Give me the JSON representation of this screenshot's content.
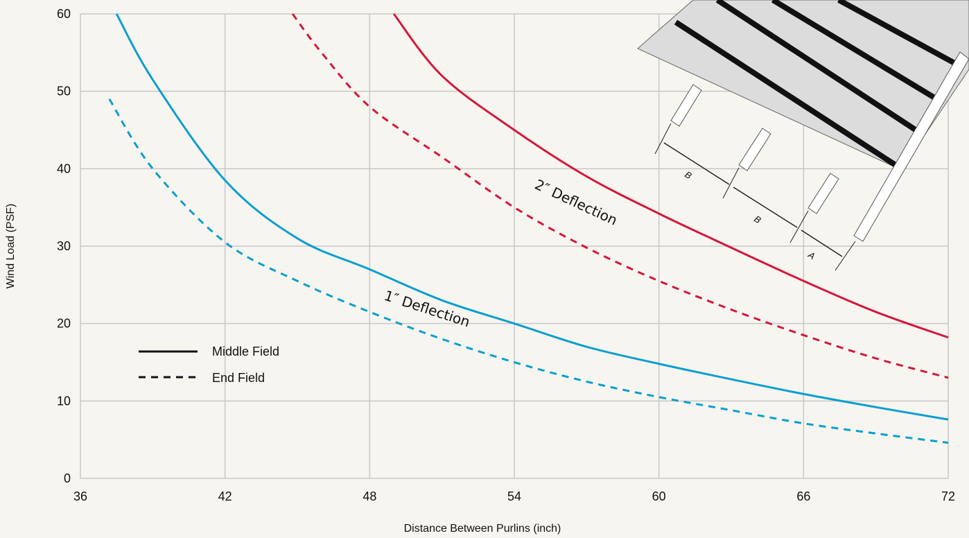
{
  "chart_data": {
    "type": "line",
    "xlabel": "Distance Between Purlins (inch)",
    "ylabel": "Wind Load (PSF)",
    "xlim": [
      36,
      72
    ],
    "ylim": [
      0,
      60
    ],
    "xticks": [
      36,
      42,
      48,
      54,
      60,
      66,
      72
    ],
    "yticks": [
      0,
      10,
      20,
      30,
      40,
      50,
      60
    ],
    "grid": true,
    "legend": [
      {
        "label": "Middle Field",
        "style": "solid"
      },
      {
        "label": "End Field",
        "style": "dashed"
      }
    ],
    "legend_position": "bottom-left",
    "series": [
      {
        "group": "1″ Deflection",
        "field": "middle",
        "style": "solid",
        "color": "#0a9fd0",
        "x": [
          37.5,
          39,
          42,
          45,
          48,
          51,
          54,
          57,
          60,
          63,
          66,
          69,
          72
        ],
        "y": [
          60,
          51.5,
          38.5,
          31,
          27,
          23,
          20,
          17,
          14.8,
          12.8,
          10.9,
          9.2,
          7.6
        ]
      },
      {
        "group": "1″ Deflection",
        "field": "end",
        "style": "dashed",
        "color": "#0a9fd0",
        "x": [
          37.2,
          39,
          42,
          45,
          48,
          51,
          54,
          57,
          60,
          63,
          66,
          69,
          72
        ],
        "y": [
          49,
          40,
          30.5,
          25.5,
          21.5,
          18,
          15,
          12.5,
          10.5,
          8.8,
          7.1,
          5.8,
          4.6
        ]
      },
      {
        "group": "2″ Deflection",
        "field": "middle",
        "style": "solid",
        "color": "#d4173a",
        "x": [
          49,
          51,
          54,
          57,
          60,
          63,
          66,
          69,
          72
        ],
        "y": [
          60,
          52,
          45,
          39,
          34.2,
          29.8,
          25.5,
          21.5,
          18.2
        ]
      },
      {
        "group": "2″ Deflection",
        "field": "end",
        "style": "dashed",
        "color": "#d4173a",
        "x": [
          44.8,
          46,
          48,
          51,
          54,
          57,
          60,
          63,
          66,
          69,
          72
        ],
        "y": [
          60,
          55,
          48,
          41.5,
          35,
          29.8,
          25.5,
          21.8,
          18.5,
          15.5,
          13
        ]
      }
    ],
    "annotations": [
      "2″ Deflection",
      "1″ Deflection"
    ],
    "inset_labels": [
      "B",
      "B",
      "A"
    ]
  }
}
